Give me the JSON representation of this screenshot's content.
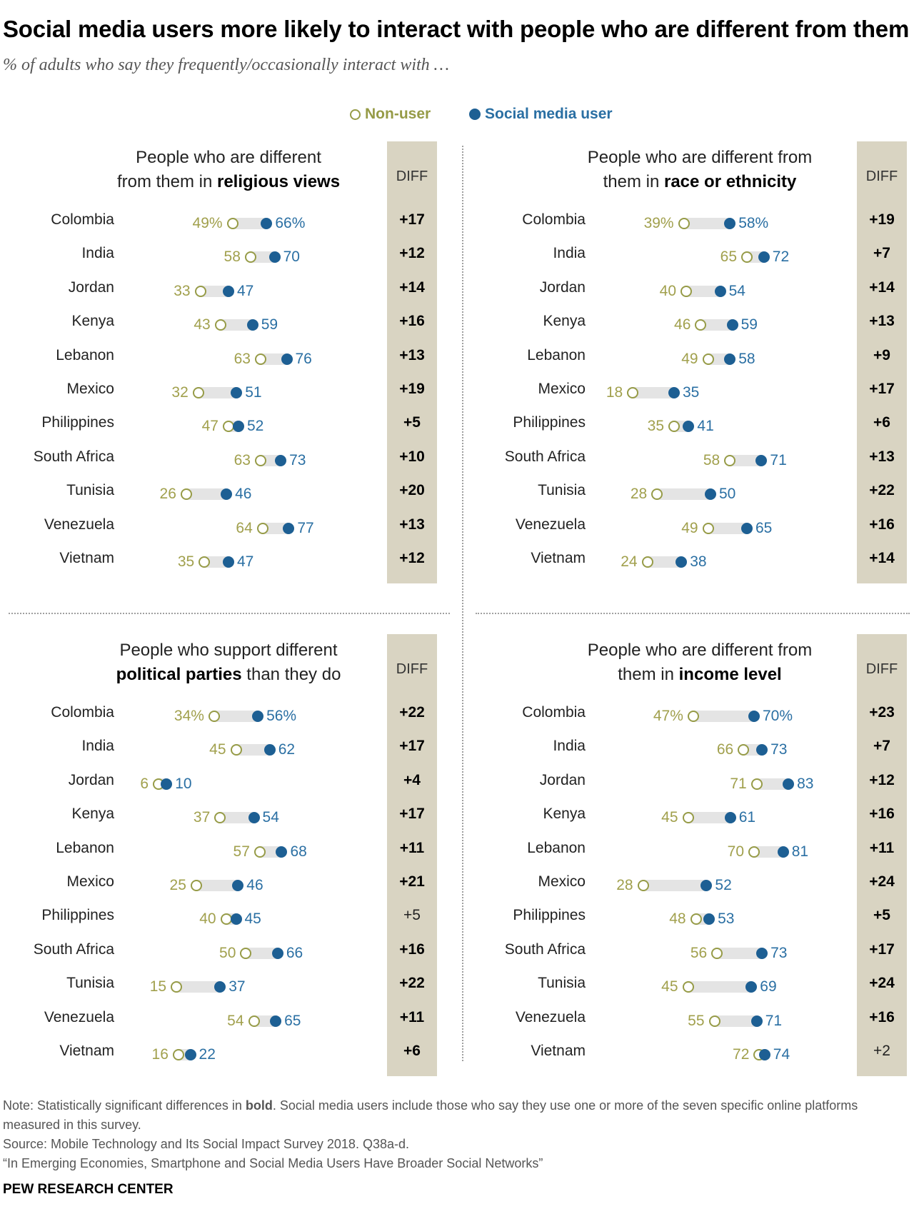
{
  "title": "Social media users more likely to interact with people who are different from them",
  "subtitle": "% of adults who say they frequently/occasionally interact with …",
  "legend": {
    "nonuser": "Non-user",
    "user": "Social media user"
  },
  "colors": {
    "nonuser": "#969b47",
    "user": "#1d5f93",
    "diff_band": "#d9d4c2",
    "bar": "#e4e4e4"
  },
  "diff_label": "DIFF",
  "note": {
    "prefix": "Note: Statistically significant differences in ",
    "bold": "bold",
    "suffix": ". Social media users include those who say they use one or more of the seven specific online platforms measured in this survey."
  },
  "source": "Source: Mobile Technology and Its Social Impact Survey 2018. Q38a-d.",
  "report": "“In Emerging Economies, Smartphone and Social Media Users Have Broader Social Networks”",
  "credit": "PEW RESEARCH CENTER",
  "chart_data": [
    {
      "type": "dot_plot",
      "title_plain": "People who are different from them in",
      "title_line1": "People who are different",
      "title_line2_plain": "from them in ",
      "title_line2_bold": "religious views",
      "series": [
        {
          "name": "Non-user",
          "values": [
            49,
            58,
            33,
            43,
            63,
            32,
            47,
            63,
            26,
            64,
            35
          ]
        },
        {
          "name": "Social media user",
          "values": [
            66,
            70,
            47,
            59,
            76,
            51,
            52,
            73,
            46,
            77,
            47
          ]
        }
      ],
      "categories": [
        "Colombia",
        "India",
        "Jordan",
        "Kenya",
        "Lebanon",
        "Mexico",
        "Philippines",
        "South Africa",
        "Tunisia",
        "Venezuela",
        "Vietnam"
      ],
      "diff": [
        "+17",
        "+12",
        "+14",
        "+16",
        "+13",
        "+19",
        "+5",
        "+10",
        "+20",
        "+13",
        "+12"
      ],
      "significant": [
        true,
        true,
        true,
        true,
        true,
        true,
        true,
        true,
        true,
        true,
        true
      ],
      "xlim": [
        0,
        100
      ]
    },
    {
      "type": "dot_plot",
      "title_line1": "People who are different from",
      "title_line2_plain": "them in ",
      "title_line2_bold": "race or ethnicity",
      "series": [
        {
          "name": "Non-user",
          "values": [
            39,
            65,
            40,
            46,
            49,
            18,
            35,
            58,
            28,
            49,
            24
          ]
        },
        {
          "name": "Social media user",
          "values": [
            58,
            72,
            54,
            59,
            58,
            35,
            41,
            71,
            50,
            65,
            38
          ]
        }
      ],
      "categories": [
        "Colombia",
        "India",
        "Jordan",
        "Kenya",
        "Lebanon",
        "Mexico",
        "Philippines",
        "South Africa",
        "Tunisia",
        "Venezuela",
        "Vietnam"
      ],
      "diff": [
        "+19",
        "+7",
        "+14",
        "+13",
        "+9",
        "+17",
        "+6",
        "+13",
        "+22",
        "+16",
        "+14"
      ],
      "significant": [
        true,
        true,
        true,
        true,
        true,
        true,
        true,
        true,
        true,
        true,
        true
      ],
      "xlim": [
        0,
        100
      ]
    },
    {
      "type": "dot_plot",
      "title_line1": "People who support different",
      "title_line2_plain": " than they do",
      "title_line2_bold": "political parties",
      "bold_first": true,
      "series": [
        {
          "name": "Non-user",
          "values": [
            34,
            45,
            6,
            37,
            57,
            25,
            40,
            50,
            15,
            54,
            16
          ]
        },
        {
          "name": "Social media user",
          "values": [
            56,
            62,
            10,
            54,
            68,
            46,
            45,
            66,
            37,
            65,
            22
          ]
        }
      ],
      "categories": [
        "Colombia",
        "India",
        "Jordan",
        "Kenya",
        "Lebanon",
        "Mexico",
        "Philippines",
        "South Africa",
        "Tunisia",
        "Venezuela",
        "Vietnam"
      ],
      "diff": [
        "+22",
        "+17",
        "+4",
        "+17",
        "+11",
        "+21",
        "+5",
        "+16",
        "+22",
        "+11",
        "+6"
      ],
      "significant": [
        true,
        true,
        true,
        true,
        true,
        true,
        false,
        true,
        true,
        true,
        true
      ],
      "xlim": [
        0,
        100
      ]
    },
    {
      "type": "dot_plot",
      "title_line1": "People who are different from",
      "title_line2_plain": "them in ",
      "title_line2_bold": "income level",
      "series": [
        {
          "name": "Non-user",
          "values": [
            47,
            66,
            71,
            45,
            70,
            28,
            48,
            56,
            45,
            55,
            72
          ]
        },
        {
          "name": "Social media user",
          "values": [
            70,
            73,
            83,
            61,
            81,
            52,
            53,
            73,
            69,
            71,
            74
          ]
        }
      ],
      "categories": [
        "Colombia",
        "India",
        "Jordan",
        "Kenya",
        "Lebanon",
        "Mexico",
        "Philippines",
        "South Africa",
        "Tunisia",
        "Venezuela",
        "Vietnam"
      ],
      "diff": [
        "+23",
        "+7",
        "+12",
        "+16",
        "+11",
        "+24",
        "+5",
        "+17",
        "+24",
        "+16",
        "+2"
      ],
      "significant": [
        true,
        true,
        true,
        true,
        true,
        true,
        true,
        true,
        true,
        true,
        false
      ],
      "xlim": [
        0,
        100
      ]
    }
  ]
}
